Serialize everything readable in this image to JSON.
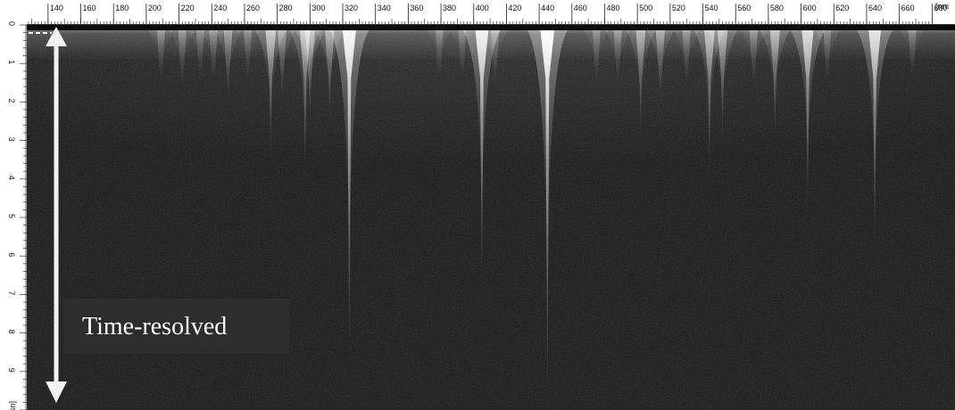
{
  "chart_data": {
    "type": "heatmap",
    "title": "",
    "xlabel": "",
    "ylabel": "",
    "x_unit": "[nm",
    "y_unit": "[us]",
    "xlim": [
      127,
      694
    ],
    "ylim": [
      0,
      10
    ],
    "x_ticks": [
      140,
      160,
      180,
      200,
      220,
      240,
      260,
      280,
      300,
      320,
      340,
      360,
      380,
      400,
      420,
      440,
      460,
      480,
      500,
      520,
      540,
      560,
      580,
      600,
      620,
      640,
      660,
      680
    ],
    "y_ticks": [
      0,
      1,
      2,
      3,
      4,
      5,
      6,
      7,
      8,
      9
    ],
    "grid": false,
    "lines": [
      {
        "x": 209,
        "peak": 0.35,
        "decay": 1.2
      },
      {
        "x": 222,
        "peak": 0.35,
        "decay": 1.5
      },
      {
        "x": 233,
        "peak": 0.3,
        "decay": 1.3
      },
      {
        "x": 241,
        "peak": 0.35,
        "decay": 1.2
      },
      {
        "x": 250,
        "peak": 0.4,
        "decay": 2.0
      },
      {
        "x": 262,
        "peak": 0.3,
        "decay": 1.2
      },
      {
        "x": 276,
        "peak": 0.6,
        "decay": 3.5
      },
      {
        "x": 283,
        "peak": 0.4,
        "decay": 2.0
      },
      {
        "x": 297,
        "peak": 0.6,
        "decay": 4.0
      },
      {
        "x": 300,
        "peak": 0.55,
        "decay": 2.5
      },
      {
        "x": 312,
        "peak": 0.5,
        "decay": 2.5
      },
      {
        "x": 324,
        "peak": 0.95,
        "decay": 9.0
      },
      {
        "x": 379,
        "peak": 0.3,
        "decay": 1.0
      },
      {
        "x": 393,
        "peak": 0.3,
        "decay": 1.0
      },
      {
        "x": 405,
        "peak": 0.9,
        "decay": 7.0
      },
      {
        "x": 413,
        "peak": 0.35,
        "decay": 1.5
      },
      {
        "x": 445,
        "peak": 1.0,
        "decay": 10.0
      },
      {
        "x": 475,
        "peak": 0.3,
        "decay": 1.5
      },
      {
        "x": 488,
        "peak": 0.35,
        "decay": 1.5
      },
      {
        "x": 502,
        "peak": 0.5,
        "decay": 3.0
      },
      {
        "x": 514,
        "peak": 0.45,
        "decay": 2.0
      },
      {
        "x": 530,
        "peak": 0.35,
        "decay": 1.5
      },
      {
        "x": 544,
        "peak": 0.6,
        "decay": 4.0
      },
      {
        "x": 552,
        "peak": 0.55,
        "decay": 3.0
      },
      {
        "x": 571,
        "peak": 0.35,
        "decay": 1.5
      },
      {
        "x": 584,
        "peak": 0.55,
        "decay": 3.0
      },
      {
        "x": 604,
        "peak": 0.75,
        "decay": 5.0
      },
      {
        "x": 616,
        "peak": 0.3,
        "decay": 1.5
      },
      {
        "x": 645,
        "peak": 0.8,
        "decay": 6.0
      },
      {
        "x": 668,
        "peak": 0.3,
        "decay": 1.0
      }
    ],
    "annotations": [
      {
        "text": "Time-resolved",
        "arrow": "vertical double-headed",
        "color": "#ffffff"
      }
    ]
  }
}
